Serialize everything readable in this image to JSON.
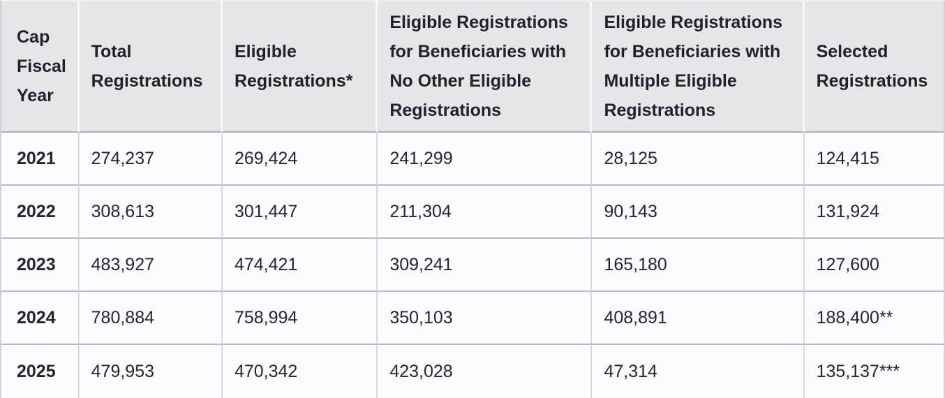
{
  "colors": {
    "header_bg": "#e5e6e8",
    "body_bg": "#fbfcfe",
    "text": "#252432",
    "horizontal_border": "#b9bdc1",
    "vertical_border_body": "#d8dadd",
    "vertical_border_header": "#f7f8f9"
  },
  "table": {
    "columns": [
      "Cap Fiscal Year",
      "Total Registrations",
      "Eligible Registrations*",
      "Eligible Registrations for Beneficiaries with No Other Eligible Registrations",
      "Eligible Registrations for Beneficiaries with Multiple Eligible Registrations",
      "Selected Registrations"
    ],
    "rows": [
      {
        "cells": [
          "2021",
          "274,237",
          "269,424",
          "241,299",
          "28,125",
          "124,415"
        ]
      },
      {
        "cells": [
          "2022",
          "308,613",
          "301,447",
          "211,304",
          "90,143",
          "131,924"
        ]
      },
      {
        "cells": [
          "2023",
          "483,927",
          "474,421",
          "309,241",
          "165,180",
          "127,600"
        ]
      },
      {
        "cells": [
          "2024",
          "780,884",
          "758,994",
          "350,103",
          "408,891",
          "188,400**"
        ]
      },
      {
        "cells": [
          "2025",
          "479,953",
          "470,342",
          "423,028",
          "47,314",
          "135,137***"
        ]
      }
    ]
  },
  "chart_data": {
    "type": "table",
    "row_label_header": "Cap Fiscal Year",
    "categories": [
      "2021",
      "2022",
      "2023",
      "2024",
      "2025"
    ],
    "series": [
      {
        "name": "Total Registrations",
        "values": [
          274237,
          308613,
          483927,
          780884,
          479953
        ]
      },
      {
        "name": "Eligible Registrations*",
        "values": [
          269424,
          301447,
          474421,
          758994,
          470342
        ]
      },
      {
        "name": "Eligible Registrations for Beneficiaries with No Other Eligible Registrations",
        "values": [
          241299,
          211304,
          309241,
          350103,
          423028
        ]
      },
      {
        "name": "Eligible Registrations for Beneficiaries with Multiple Eligible Registrations",
        "values": [
          28125,
          90143,
          165180,
          408891,
          47314
        ]
      },
      {
        "name": "Selected Registrations",
        "values": [
          124415,
          131924,
          127600,
          188400,
          135137
        ]
      }
    ],
    "footnotes_shown_as_markers": [
      "* on Eligible Registrations header",
      "** on 2024 Selected Registrations value",
      "*** on 2025 Selected Registrations value"
    ]
  }
}
